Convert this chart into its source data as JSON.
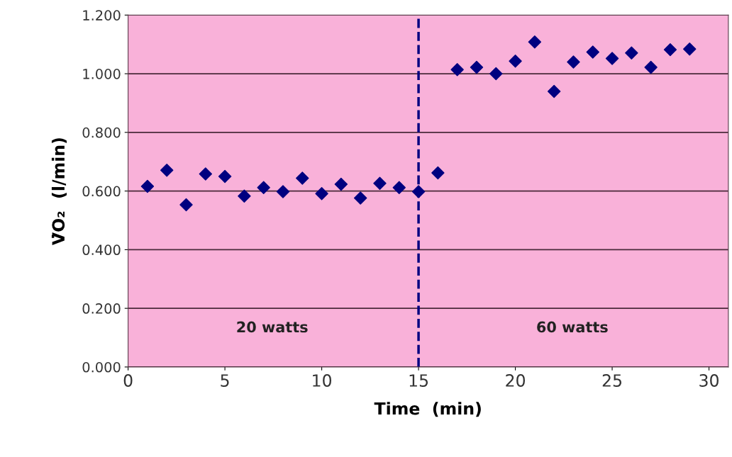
{
  "chart_data": {
    "type": "scatter",
    "xlabel": "Time  (min)",
    "ylabel": "V̇O₂  (l/min)",
    "x": [
      1,
      2,
      3,
      4,
      5,
      6,
      7,
      8,
      9,
      10,
      11,
      12,
      13,
      14,
      15,
      16,
      17,
      18,
      19,
      20,
      21,
      22,
      23,
      24,
      25,
      26,
      27,
      28,
      29
    ],
    "series": [
      {
        "color": "#000080",
        "values": [
          0.616,
          0.671,
          0.553,
          0.658,
          0.65,
          0.583,
          0.612,
          0.598,
          0.644,
          0.591,
          0.623,
          0.576,
          0.626,
          0.612,
          0.598,
          0.662,
          1.014,
          1.022,
          1.0,
          1.043,
          1.108,
          0.94,
          1.04,
          1.074,
          1.052,
          1.071,
          1.022,
          1.082,
          1.084
        ]
      }
    ],
    "xlim": [
      0,
      31
    ],
    "xticks": [
      0,
      5,
      10,
      15,
      20,
      25,
      30
    ],
    "ylim": [
      0,
      1.2
    ],
    "yticks": [
      {
        "value": 0,
        "label": "0.000"
      },
      {
        "value": 0.2,
        "label": "0.200"
      },
      {
        "value": 0.4,
        "label": "0.400"
      },
      {
        "value": 0.6,
        "label": "0.600"
      },
      {
        "value": 0.8,
        "label": "0.800"
      },
      {
        "value": 1.0,
        "label": "1.000"
      },
      {
        "value": 1.2,
        "label": "1.200"
      }
    ],
    "grid": "y",
    "marker": "diamond",
    "ref_lines": [
      {
        "axis": "x",
        "value": 15,
        "color": "#000080",
        "line_style": "dashed"
      }
    ],
    "annotations": [
      "20 watts",
      "60 watts"
    ]
  }
}
